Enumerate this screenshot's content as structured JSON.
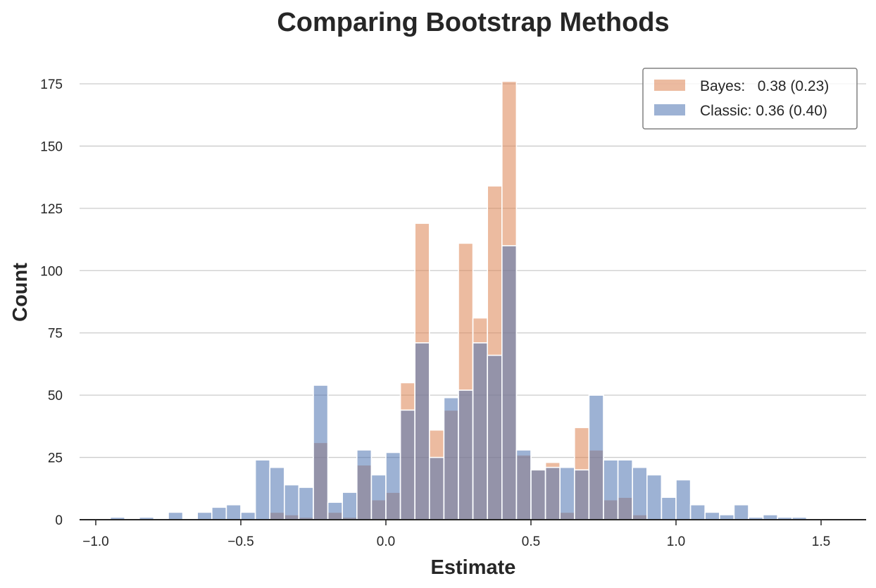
{
  "chart_data": {
    "type": "bar",
    "subtype": "overlaid-histogram",
    "title": "Comparing Bootstrap Methods",
    "xlabel": "Estimate",
    "ylabel": "Count",
    "xlim": [
      -1.05,
      1.65
    ],
    "ylim": [
      0,
      180
    ],
    "xticks": [
      -1.0,
      -0.5,
      0.0,
      0.5,
      1.0,
      1.5
    ],
    "xtick_labels": [
      "−1.0",
      "−0.5",
      "0.0",
      "0.5",
      "1.0",
      "1.5"
    ],
    "yticks": [
      0,
      25,
      50,
      75,
      100,
      125,
      150,
      175
    ],
    "ytick_labels": [
      "0",
      "25",
      "50",
      "75",
      "100",
      "125",
      "150",
      "175"
    ],
    "grid": "horizontal",
    "legend_position": "top-right",
    "bin_width": 0.05,
    "bin_start": -0.95,
    "series": [
      {
        "name": "Bayes:   0.38 (0.23)",
        "color": "#dd8452",
        "values": [
          0,
          0,
          0,
          0,
          0,
          0,
          0,
          0,
          0,
          0,
          0,
          3,
          2,
          1,
          31,
          3,
          1,
          22,
          8,
          11,
          55,
          119,
          36,
          44,
          111,
          81,
          134,
          176,
          26,
          20,
          23,
          3,
          37,
          28,
          8,
          9,
          2,
          0,
          0,
          0,
          0,
          0,
          0,
          0,
          0,
          0,
          0,
          0
        ]
      },
      {
        "name": "Classic: 0.36 (0.40)",
        "color": "#4c72b0",
        "values": [
          1,
          0,
          1,
          0,
          3,
          0,
          3,
          5,
          6,
          3,
          24,
          21,
          14,
          13,
          54,
          7,
          11,
          28,
          18,
          27,
          44,
          71,
          25,
          49,
          52,
          71,
          66,
          110,
          28,
          20,
          21,
          21,
          20,
          50,
          24,
          24,
          21,
          18,
          9,
          16,
          6,
          3,
          2,
          6,
          1,
          2,
          1,
          1
        ]
      }
    ]
  }
}
